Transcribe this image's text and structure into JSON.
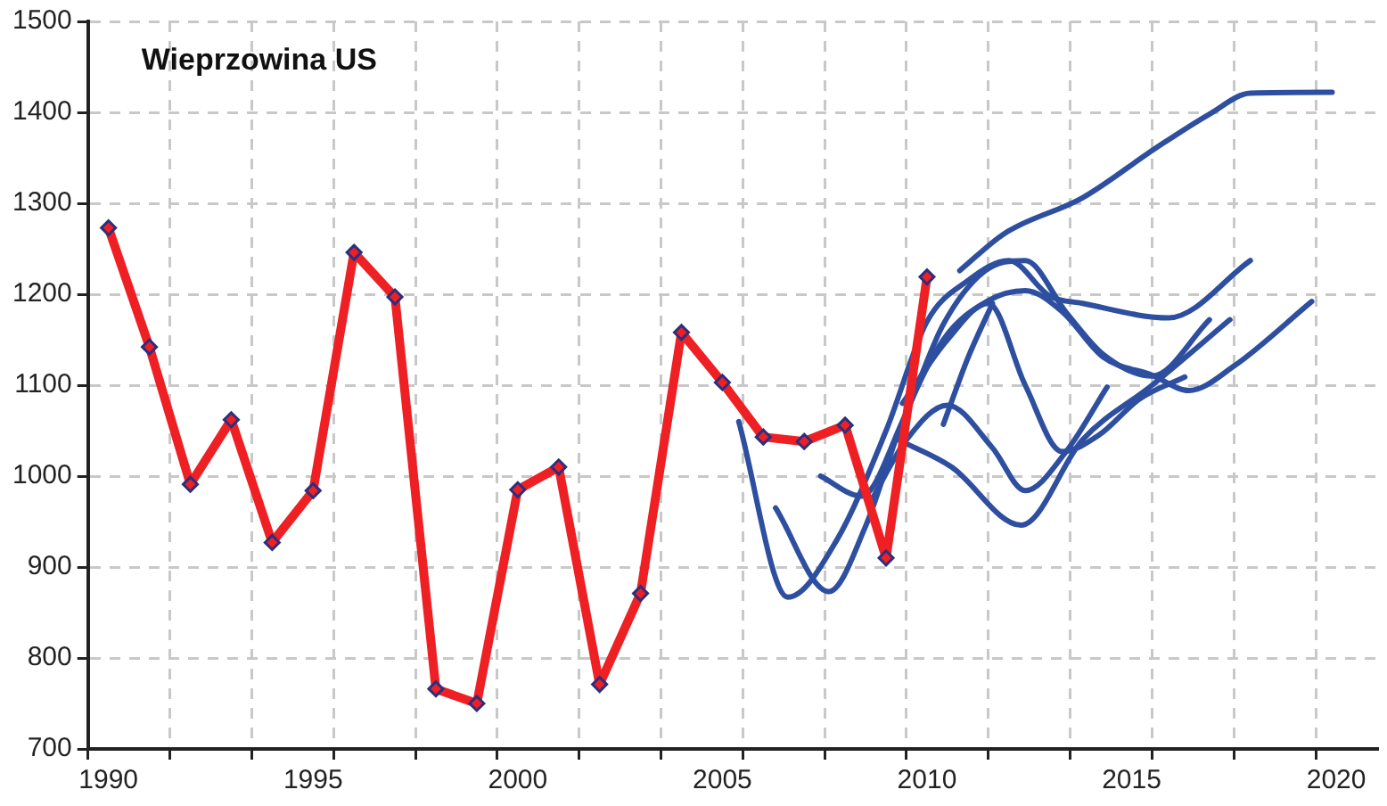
{
  "chart_data": {
    "type": "line",
    "title": "Wieprzowina US",
    "grid": true,
    "line_style": "solid",
    "xlim": [
      1989.5,
      2021
    ],
    "ylim": [
      700,
      1500
    ],
    "xticks": [
      {
        "value": 1989.5,
        "label": null
      },
      {
        "value": 1990,
        "label": "1990"
      },
      {
        "value": 1991.5,
        "label": null
      },
      {
        "value": 1993.5,
        "label": null
      },
      {
        "value": 1995,
        "label": "1995"
      },
      {
        "value": 1995.5,
        "label": null
      },
      {
        "value": 1997.5,
        "label": null
      },
      {
        "value": 1999.5,
        "label": null
      },
      {
        "value": 2000,
        "label": "2000"
      },
      {
        "value": 2001.5,
        "label": null
      },
      {
        "value": 2003.5,
        "label": null
      },
      {
        "value": 2005,
        "label": "2005"
      },
      {
        "value": 2005.5,
        "label": null
      },
      {
        "value": 2007.5,
        "label": null
      },
      {
        "value": 2009.5,
        "label": null
      },
      {
        "value": 2010,
        "label": "2010"
      },
      {
        "value": 2011.5,
        "label": null
      },
      {
        "value": 2013.5,
        "label": null
      },
      {
        "value": 2015,
        "label": "2015"
      },
      {
        "value": 2015.5,
        "label": null
      },
      {
        "value": 2017.5,
        "label": null
      },
      {
        "value": 2019.5,
        "label": null
      },
      {
        "value": 2020,
        "label": "2020"
      }
    ],
    "yticks": [
      700,
      800,
      900,
      1000,
      1100,
      1200,
      1300,
      1400,
      1500
    ],
    "series": [
      {
        "color": "#2e4fa0",
        "marker": "none",
        "x": [
          2010.8,
          2011.9,
          2013.8,
          2015.6,
          2016.9,
          2017.9,
          2019.9
        ],
        "values": [
          1226,
          1267,
          1306,
          1361,
          1398,
          1421,
          1422
        ]
      },
      {
        "color": "#2e4fa0",
        "marker": "none",
        "x": [
          2005.4,
          2006.6,
          2007.8,
          2009,
          2010,
          2011,
          2012,
          2013,
          2013.8,
          2015.9,
          2017.9
        ],
        "values": [
          1060,
          867,
          930,
          1050,
          1170,
          1215,
          1237,
          1198,
          1190,
          1174,
          1237
        ]
      },
      {
        "color": "#2e4fa0",
        "marker": "none",
        "x": [
          2006.3,
          2007.6,
          2008.5,
          2009.4,
          2010.4,
          2011.5,
          2012.4,
          2013.3,
          2014.3,
          2015.5,
          2016.4,
          2017.5,
          2019.4
        ],
        "values": [
          965,
          873,
          945,
          1060,
          1150,
          1193,
          1204,
          1181,
          1131,
          1111,
          1094,
          1121,
          1192
        ]
      },
      {
        "color": "#2e4fa0",
        "marker": "none",
        "x": [
          2007.4,
          2008.4,
          2009.4,
          2010.4,
          2011.4,
          2012.4,
          2013.4,
          2014.3,
          2015.5,
          2016.9
        ],
        "values": [
          1000,
          978,
          1060,
          1167,
          1225,
          1237,
          1180,
          1134,
          1110,
          1172
        ]
      },
      {
        "color": "#2e4fa0",
        "marker": "none",
        "x": [
          2009.4,
          2010.5,
          2011.5,
          2012.4,
          2013.3,
          2014.2,
          2015.2,
          2016.3
        ],
        "values": [
          1080,
          1150,
          1190,
          1100,
          1027,
          1045,
          1085,
          1109
        ]
      },
      {
        "color": "#2e4fa0",
        "marker": "none",
        "x": [
          2008.6,
          2009.5,
          2010.5,
          2011.6,
          2012.4,
          2013.4,
          2014.4
        ],
        "values": [
          970,
          1040,
          1078,
          1031,
          984,
          1027,
          1098
        ]
      },
      {
        "color": "#2e4fa0",
        "marker": "none",
        "x": [
          2009.3,
          2010.6,
          2012.3,
          2013.8,
          2015.5,
          2017.4
        ],
        "values": [
          1040,
          1010,
          946,
          1040,
          1100,
          1172
        ]
      },
      {
        "color": "#2e4fa0",
        "marker": "none",
        "x": [
          2010.4,
          2011,
          2011.6
        ],
        "values": [
          1057,
          1130,
          1190
        ]
      },
      {
        "color": "#ee2024",
        "marker": "diamond",
        "x": [
          1990,
          1991,
          1992,
          1993,
          1994,
          1995,
          1996,
          1997,
          1998,
          1999,
          2000,
          2001,
          2002,
          2003,
          2004,
          2005,
          2006,
          2007,
          2008,
          2009,
          2010
        ],
        "values": [
          1273,
          1142,
          991,
          1062,
          927,
          984,
          1246,
          1197,
          766,
          750,
          985,
          1010,
          771,
          871,
          1158,
          1103,
          1043,
          1038,
          1056,
          910,
          1219
        ]
      }
    ]
  }
}
